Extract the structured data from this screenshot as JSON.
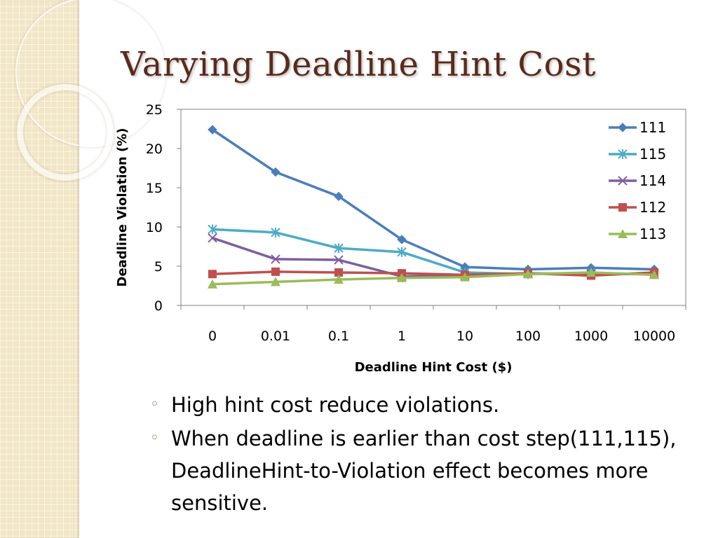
{
  "slide": {
    "title": "Varying Deadline Hint Cost",
    "bullets": [
      "High hint cost reduce violations.",
      "When deadline is earlier than cost step(111,115), DeadlineHint-to-Violation effect becomes more sensitive."
    ]
  },
  "chart_data": {
    "type": "line",
    "title": "",
    "xlabel": "Deadline Hint Cost ($)",
    "ylabel": "Deadline Violation (%)",
    "categories": [
      "0",
      "0.01",
      "0.1",
      "1",
      "10",
      "100",
      "1000",
      "10000"
    ],
    "ylim": [
      0,
      25
    ],
    "yticks": [
      0,
      5,
      10,
      15,
      20,
      25
    ],
    "grid": false,
    "legend": "top-right",
    "series": [
      {
        "name": "111",
        "color": "#4a7ebb",
        "marker": "diamond",
        "values": [
          22.4,
          17.0,
          13.9,
          8.4,
          4.9,
          4.6,
          4.8,
          4.6
        ]
      },
      {
        "name": "115",
        "color": "#4bacc6",
        "marker": "asterisk",
        "values": [
          9.7,
          9.3,
          7.3,
          6.8,
          4.2,
          4.0,
          4.1,
          4.0
        ]
      },
      {
        "name": "114",
        "color": "#7d5fa0",
        "marker": "x",
        "values": [
          8.6,
          5.9,
          5.8,
          3.7,
          3.8,
          4.1,
          4.0,
          4.0
        ]
      },
      {
        "name": "112",
        "color": "#c0504d",
        "marker": "square",
        "values": [
          4.0,
          4.3,
          4.2,
          4.1,
          3.9,
          4.1,
          3.8,
          4.2
        ]
      },
      {
        "name": "113",
        "color": "#9bbb59",
        "marker": "triangle",
        "values": [
          2.7,
          3.0,
          3.3,
          3.5,
          3.6,
          4.0,
          4.2,
          3.9
        ]
      }
    ]
  }
}
